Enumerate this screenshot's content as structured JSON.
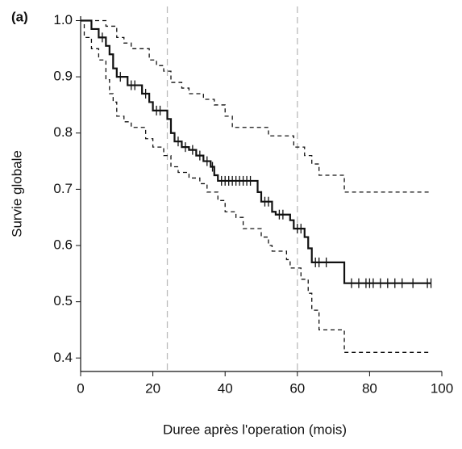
{
  "chart_data": {
    "type": "step",
    "panel_label": "(a)",
    "ylabel": "Survie globale",
    "xlabel": "Duree après l'operation (mois)",
    "xlim": [
      0,
      100
    ],
    "ylim": [
      0.376,
      1.005
    ],
    "xticks": [
      0,
      20,
      40,
      60,
      80,
      100
    ],
    "yticks": [
      0.4,
      0.5,
      0.6,
      0.7,
      0.8,
      0.9,
      {
        "value": 1,
        "label": "1.0"
      }
    ],
    "reference_lines_x": [
      24,
      60
    ],
    "reference_color": "#bbbbbb",
    "series": [
      {
        "color": "#111111",
        "dashed": false,
        "x": [
          0,
          3,
          5,
          7,
          8,
          9,
          10,
          13,
          17,
          19,
          20,
          24,
          25,
          26,
          28,
          30,
          32,
          34,
          36,
          37,
          38,
          49,
          50,
          53,
          54,
          58,
          59,
          62,
          63,
          64,
          73,
          97
        ],
        "values": [
          1,
          0.985,
          0.97,
          0.955,
          0.94,
          0.915,
          0.9,
          0.885,
          0.87,
          0.855,
          0.84,
          0.825,
          0.8,
          0.785,
          0.775,
          0.77,
          0.76,
          0.75,
          0.74,
          0.725,
          0.715,
          0.695,
          0.678,
          0.66,
          0.655,
          0.645,
          0.63,
          0.615,
          0.595,
          0.57,
          0.533,
          0.533
        ]
      },
      {
        "color": "#111111",
        "dashed": true,
        "x": [
          0,
          7,
          10,
          12,
          14,
          19,
          21,
          23,
          25,
          28,
          30,
          34,
          37,
          40,
          42,
          52,
          59,
          62,
          64,
          66,
          73,
          97
        ],
        "values": [
          1,
          0.99,
          0.97,
          0.96,
          0.95,
          0.93,
          0.92,
          0.91,
          0.89,
          0.88,
          0.87,
          0.86,
          0.85,
          0.83,
          0.81,
          0.795,
          0.775,
          0.76,
          0.745,
          0.725,
          0.695,
          0.695
        ]
      },
      {
        "color": "#111111",
        "dashed": true,
        "x": [
          0,
          1,
          3,
          5,
          7,
          8,
          9,
          10,
          12,
          14,
          18,
          20,
          23,
          25,
          27,
          30,
          33,
          35,
          38,
          40,
          43,
          45,
          50,
          52,
          53,
          57,
          58,
          61,
          63,
          64,
          66,
          73,
          97
        ],
        "values": [
          1,
          0.97,
          0.95,
          0.93,
          0.895,
          0.87,
          0.855,
          0.83,
          0.82,
          0.81,
          0.79,
          0.775,
          0.76,
          0.74,
          0.73,
          0.72,
          0.71,
          0.695,
          0.68,
          0.66,
          0.65,
          0.63,
          0.615,
          0.6,
          0.59,
          0.575,
          0.56,
          0.54,
          0.515,
          0.485,
          0.45,
          0.41,
          0.41
        ]
      }
    ],
    "censor": {
      "x": [
        6,
        11,
        14,
        15,
        18,
        21,
        22,
        27,
        29,
        31,
        33,
        35,
        36.5,
        39,
        40,
        41,
        42,
        43,
        44,
        45,
        46,
        47,
        51,
        52,
        55,
        56,
        60,
        61,
        65,
        66,
        68,
        75,
        77,
        79,
        80,
        81,
        83,
        85,
        87,
        89,
        92,
        96,
        97
      ],
      "values": [
        0.97,
        0.9,
        0.885,
        0.885,
        0.87,
        0.84,
        0.84,
        0.785,
        0.775,
        0.77,
        0.76,
        0.75,
        0.74,
        0.715,
        0.715,
        0.715,
        0.715,
        0.715,
        0.715,
        0.715,
        0.715,
        0.715,
        0.678,
        0.678,
        0.655,
        0.655,
        0.63,
        0.63,
        0.57,
        0.57,
        0.57,
        0.533,
        0.533,
        0.533,
        0.533,
        0.533,
        0.533,
        0.533,
        0.533,
        0.533,
        0.533,
        0.533,
        0.533
      ]
    }
  }
}
